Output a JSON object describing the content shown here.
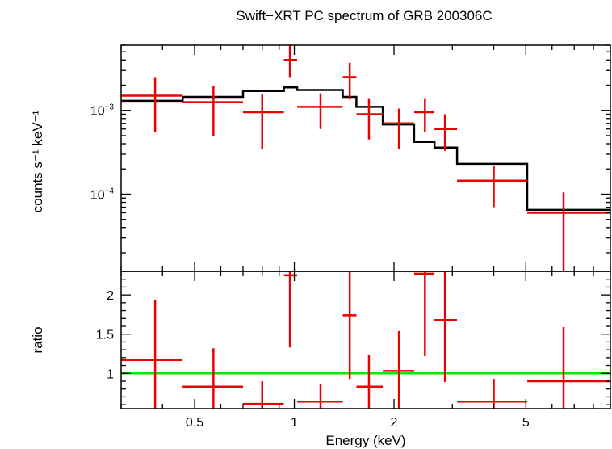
{
  "chart_data": [
    {
      "type": "line",
      "title": "Swift−XRT PC spectrum of GRB 200306C",
      "ylabel": "counts s⁻¹ keV⁻¹",
      "xscale": "log",
      "yscale": "log",
      "xlim": [
        0.3,
        9.0
      ],
      "ylim": [
        1.2e-05,
        0.006
      ],
      "yticks": [
        {
          "value": 0.001,
          "base": "10",
          "exp": "−3"
        },
        {
          "value": 0.0001,
          "base": "10",
          "exp": "−4"
        }
      ],
      "series": [
        {
          "name": "",
          "style": "data",
          "color": "#ee0000",
          "points": [
            {
              "x": 0.38,
              "xlo": 0.3,
              "xhi": 0.46,
              "y": 0.0015,
              "ylo": 0.00055,
              "yhi": 0.0025
            },
            {
              "x": 0.57,
              "xlo": 0.46,
              "xhi": 0.7,
              "y": 0.00125,
              "ylo": 0.0005,
              "yhi": 0.00195
            },
            {
              "x": 0.8,
              "xlo": 0.7,
              "xhi": 0.93,
              "y": 0.00095,
              "ylo": 0.00035,
              "yhi": 0.00155
            },
            {
              "x": 0.97,
              "xlo": 0.93,
              "xhi": 1.02,
              "y": 0.004,
              "ylo": 0.0025,
              "yhi": 0.006
            },
            {
              "x": 1.2,
              "xlo": 1.02,
              "xhi": 1.4,
              "y": 0.0011,
              "ylo": 0.0006,
              "yhi": 0.0016
            },
            {
              "x": 1.47,
              "xlo": 1.4,
              "xhi": 1.54,
              "y": 0.0025,
              "ylo": 0.00135,
              "yhi": 0.0037
            },
            {
              "x": 1.68,
              "xlo": 1.54,
              "xhi": 1.85,
              "y": 0.0009,
              "ylo": 0.00045,
              "yhi": 0.0014
            },
            {
              "x": 2.07,
              "xlo": 1.85,
              "xhi": 2.3,
              "y": 0.0007,
              "ylo": 0.00035,
              "yhi": 0.00105
            },
            {
              "x": 2.48,
              "xlo": 2.3,
              "xhi": 2.65,
              "y": 0.00095,
              "ylo": 0.00055,
              "yhi": 0.0014
            },
            {
              "x": 2.85,
              "xlo": 2.65,
              "xhi": 3.1,
              "y": 0.0006,
              "ylo": 0.00033,
              "yhi": 0.0009
            },
            {
              "x": 4.0,
              "xlo": 3.1,
              "xhi": 5.05,
              "y": 0.000145,
              "ylo": 7e-05,
              "yhi": 0.00022
            },
            {
              "x": 6.5,
              "xlo": 5.05,
              "xhi": 9.0,
              "y": 6e-05,
              "ylo": 1.05e-05,
              "yhi": 0.000105
            }
          ]
        },
        {
          "name": "",
          "style": "model",
          "color": "#000000",
          "steps": [
            {
              "xlo": 0.3,
              "xhi": 0.46,
              "y": 0.0013
            },
            {
              "xlo": 0.46,
              "xhi": 0.7,
              "y": 0.00145
            },
            {
              "xlo": 0.7,
              "xhi": 0.93,
              "y": 0.0017
            },
            {
              "xlo": 0.93,
              "xhi": 1.02,
              "y": 0.00188
            },
            {
              "xlo": 1.02,
              "xhi": 1.4,
              "y": 0.00175
            },
            {
              "xlo": 1.4,
              "xhi": 1.54,
              "y": 0.00145
            },
            {
              "xlo": 1.54,
              "xhi": 1.85,
              "y": 0.0011
            },
            {
              "xlo": 1.85,
              "xhi": 2.3,
              "y": 0.00068
            },
            {
              "xlo": 2.3,
              "xhi": 2.65,
              "y": 0.00042
            },
            {
              "xlo": 2.65,
              "xhi": 3.1,
              "y": 0.00036
            },
            {
              "xlo": 3.1,
              "xhi": 5.05,
              "y": 0.00023
            },
            {
              "xlo": 5.05,
              "xhi": 9.0,
              "y": 6.5e-05
            }
          ]
        }
      ]
    },
    {
      "type": "scatter",
      "xlabel": "Energy (keV)",
      "ylabel": "ratio",
      "xscale": "log",
      "xlim": [
        0.3,
        9.0
      ],
      "ylim": [
        0.55,
        2.3
      ],
      "xticks": [
        {
          "value": 0.5,
          "label": "0.5"
        },
        {
          "value": 1,
          "label": "1"
        },
        {
          "value": 2,
          "label": "2"
        },
        {
          "value": 5,
          "label": "5"
        }
      ],
      "yticks": [
        {
          "value": 1,
          "label": "1"
        },
        {
          "value": 1.5,
          "label": "1.5"
        },
        {
          "value": 2,
          "label": "2"
        }
      ],
      "reference_line": {
        "y": 1,
        "color": "#00ee00"
      },
      "series": [
        {
          "name": "",
          "color": "#ee0000",
          "points": [
            {
              "x": 0.38,
              "xlo": 0.3,
              "xhi": 0.46,
              "y": 1.17,
              "ylo": 0.55,
              "yhi": 1.93
            },
            {
              "x": 0.57,
              "xlo": 0.46,
              "xhi": 0.7,
              "y": 0.83,
              "ylo": 0.55,
              "yhi": 1.32
            },
            {
              "x": 0.8,
              "xlo": 0.7,
              "xhi": 0.93,
              "y": 0.61,
              "ylo": 0.55,
              "yhi": 0.9
            },
            {
              "x": 0.97,
              "xlo": 0.93,
              "xhi": 1.02,
              "y": 2.25,
              "ylo": 1.33,
              "yhi": 2.3
            },
            {
              "x": 1.2,
              "xlo": 1.02,
              "xhi": 1.4,
              "y": 0.64,
              "ylo": 0.55,
              "yhi": 0.87
            },
            {
              "x": 1.47,
              "xlo": 1.4,
              "xhi": 1.54,
              "y": 1.74,
              "ylo": 0.93,
              "yhi": 2.3
            },
            {
              "x": 1.68,
              "xlo": 1.54,
              "xhi": 1.85,
              "y": 0.83,
              "ylo": 0.55,
              "yhi": 1.23
            },
            {
              "x": 2.07,
              "xlo": 1.85,
              "xhi": 2.3,
              "y": 1.03,
              "ylo": 0.55,
              "yhi": 1.54
            },
            {
              "x": 2.48,
              "xlo": 2.3,
              "xhi": 2.65,
              "y": 2.27,
              "ylo": 1.22,
              "yhi": 2.3
            },
            {
              "x": 2.85,
              "xlo": 2.65,
              "xhi": 3.1,
              "y": 1.68,
              "ylo": 0.89,
              "yhi": 2.3
            },
            {
              "x": 4.0,
              "xlo": 3.1,
              "xhi": 5.05,
              "y": 0.64,
              "ylo": 0.55,
              "yhi": 0.93
            },
            {
              "x": 6.5,
              "xlo": 5.05,
              "xhi": 9.0,
              "y": 0.9,
              "ylo": 0.55,
              "yhi": 1.59
            }
          ]
        }
      ]
    }
  ]
}
